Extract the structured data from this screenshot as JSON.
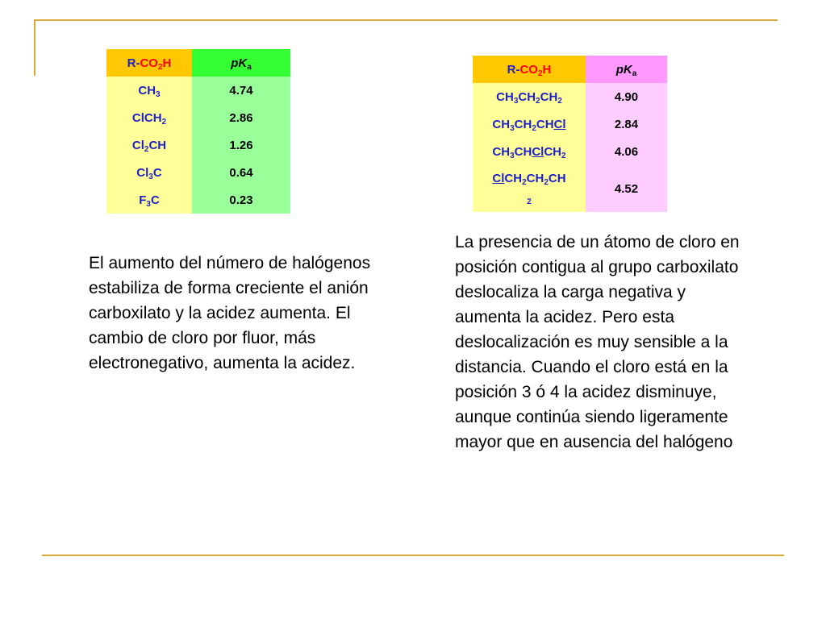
{
  "table_left": {
    "header": {
      "group_r": "R",
      "group_dash": "-",
      "group_co": "CO",
      "group_sub2": "2",
      "group_h": "H",
      "pka_p": "p",
      "pka_k": "K",
      "pka_a": "a"
    },
    "rows": [
      {
        "formula": [
          "CH",
          "3"
        ],
        "pka": "4.74"
      },
      {
        "formula": [
          "ClCH",
          "2"
        ],
        "pka": "2.86"
      },
      {
        "formula": [
          "Cl",
          "2",
          "CH"
        ],
        "pka": "1.26"
      },
      {
        "formula": [
          "Cl",
          "3",
          "C"
        ],
        "pka": "0.64"
      },
      {
        "formula": [
          "F",
          "3",
          "C"
        ],
        "pka": "0.23"
      }
    ]
  },
  "table_right": {
    "header": {
      "group_r": "R",
      "group_dash": "-",
      "group_co": "CO",
      "group_sub2": "2",
      "group_h": "H",
      "pka_p": "p",
      "pka_k": "K",
      "pka_a": "a"
    },
    "rows": [
      {
        "formula": [
          "CH",
          "3",
          "CH",
          "2",
          "CH",
          "2"
        ],
        "pka": "4.90"
      },
      {
        "formula": [
          "CH",
          "3",
          "CH",
          "2",
          "CH",
          "Cl"
        ],
        "pka": "2.84"
      },
      {
        "formula": [
          "CH",
          "3",
          "CH",
          "Cl",
          "CH",
          "2"
        ],
        "pka": "4.06"
      },
      {
        "formula": [
          "Cl",
          "CH",
          "2",
          "CH",
          "2",
          "CH",
          "2"
        ],
        "pka": "4.52"
      }
    ]
  },
  "text_left": "El aumento del número de halógenos estabiliza de forma creciente el anión carboxilato y la acidez aumenta. El cambio de cloro por fluor, más electronegativo, aumenta la acidez.",
  "text_right": "La presencia de un átomo de cloro en posición contigua al grupo carboxilato deslocaliza la carga negativa y aumenta la acidez. Pero esta deslocalización es muy sensible a la distancia. Cuando el cloro está en la posición 3 ó 4 la acidez disminuye, aunque continúa siendo ligeramente mayor que en ausencia del halógeno",
  "colors": {
    "rule": "#d9a93a",
    "formula_text": "#1f1fc8",
    "co_text": "#ff0000",
    "left_header_group": "#ffc800",
    "left_header_pka": "#33ff33",
    "left_cell_group": "#ffff99",
    "left_cell_pka": "#99ff99",
    "right_header_pka": "#ff99ff",
    "right_cell_pka": "#ffccff"
  }
}
